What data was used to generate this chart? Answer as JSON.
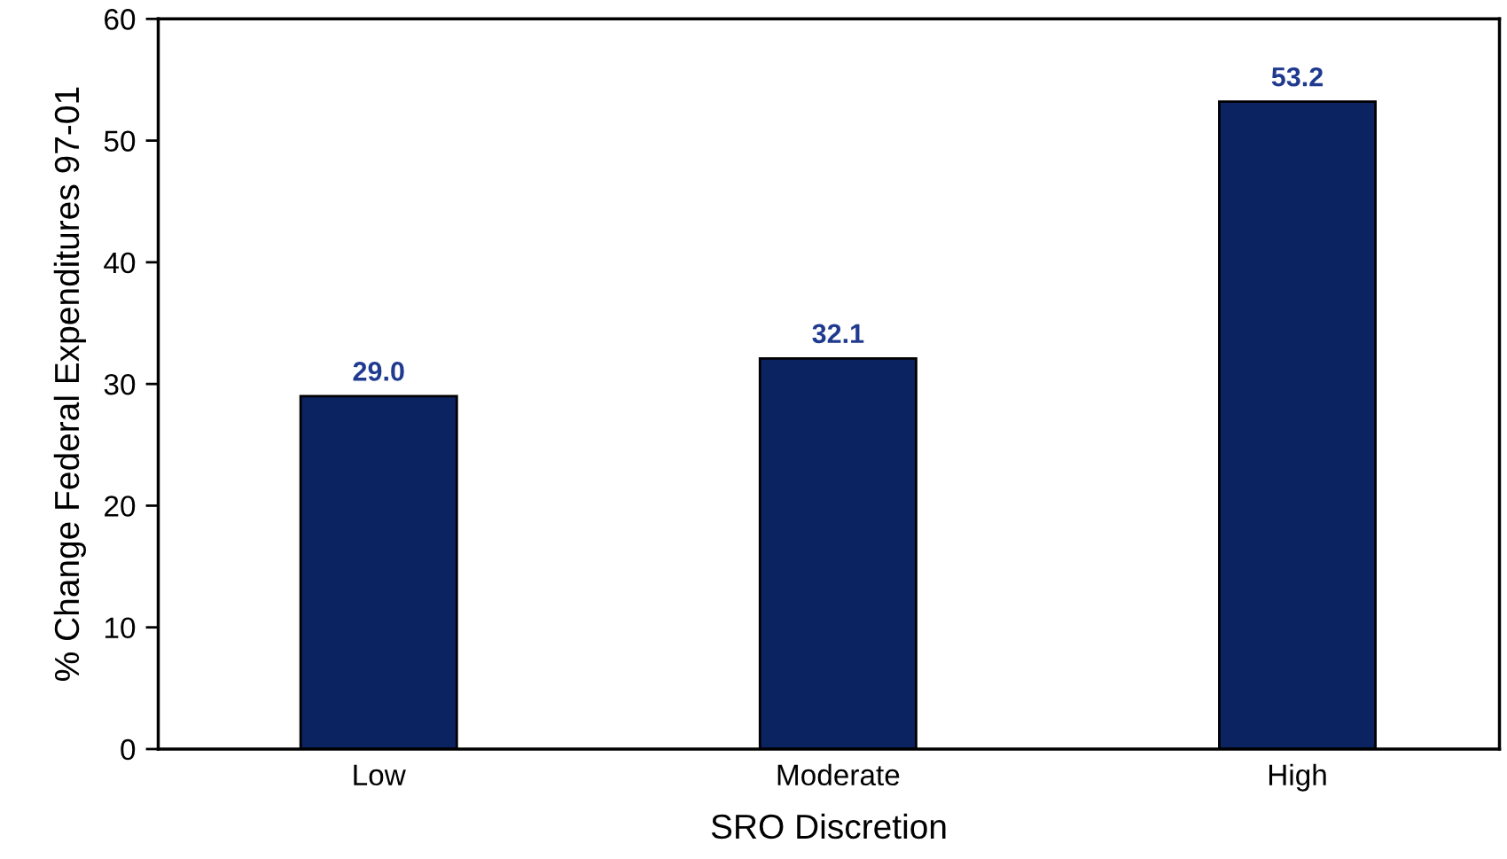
{
  "chart_data": {
    "type": "bar",
    "xlabel": "SRO Discretion",
    "ylabel": "% Change Federal Expenditures 97-01",
    "categories": [
      "Low",
      "Moderate",
      "High"
    ],
    "values": [
      29.0,
      32.1,
      53.2
    ],
    "color": "#0c2362",
    "value_labels": [
      "29.0",
      "32.1",
      "53.2"
    ],
    "ylim": [
      0,
      60
    ],
    "yticks": [
      0,
      10,
      20,
      30,
      40,
      50,
      60
    ],
    "grid": false
  }
}
